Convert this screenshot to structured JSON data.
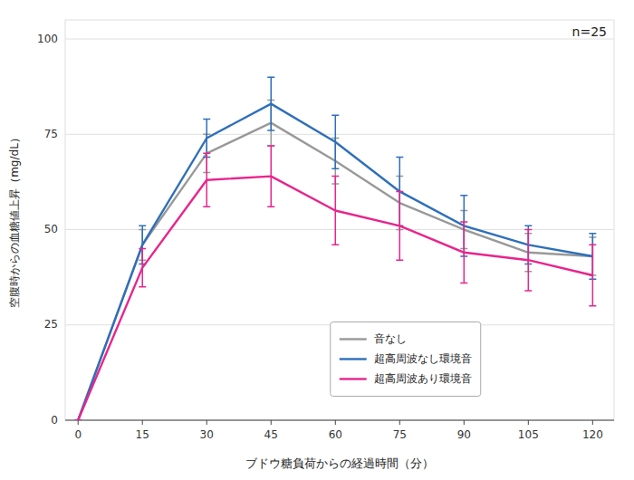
{
  "chart_data": {
    "type": "line",
    "x": [
      0,
      15,
      30,
      45,
      60,
      75,
      90,
      105,
      120
    ],
    "series": [
      {
        "name": "音なし",
        "color": "#999999",
        "values": [
          0,
          46,
          70,
          78,
          68,
          57,
          50,
          44,
          43
        ],
        "errors": [
          0,
          4,
          5,
          6,
          6,
          7,
          5,
          5,
          5
        ]
      },
      {
        "name": "超高周波なし環境音",
        "color": "#2e6fba",
        "values": [
          0,
          46,
          74,
          83,
          73,
          60,
          51,
          46,
          43
        ],
        "errors": [
          0,
          5,
          5,
          7,
          7,
          9,
          8,
          5,
          6
        ]
      },
      {
        "name": "超高周波あり環境音",
        "color": "#e8258c",
        "values": [
          0,
          40,
          63,
          64,
          55,
          51,
          44,
          42,
          38
        ],
        "errors": [
          0,
          5,
          7,
          8,
          9,
          9,
          8,
          8,
          8
        ]
      }
    ],
    "xlabel": "ブドウ糖負荷からの経過時間（分）",
    "ylabel": "空腹時からの血糖値上昇（mg/dL）",
    "annotation": "n=25",
    "xlim": [
      -3,
      125
    ],
    "ylim": [
      0,
      105
    ],
    "xticks": [
      0,
      15,
      30,
      45,
      60,
      75,
      90,
      105,
      120
    ],
    "yticks": [
      0,
      25,
      50,
      75,
      100
    ],
    "grid": true,
    "legend": "bottom"
  }
}
